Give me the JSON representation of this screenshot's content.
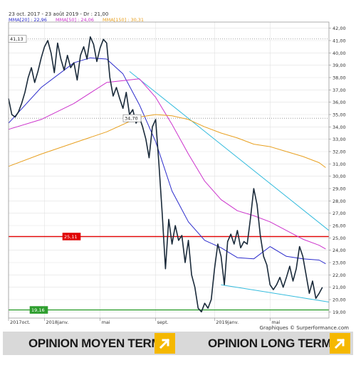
{
  "header": {
    "period": "23 oct. 2017 - 23 août 2019 - Dr : 21,00",
    "legend": [
      {
        "label": "MMA[20] : 22,96",
        "color": "#2b2bcc"
      },
      {
        "label": "MMA[50] : 24,06",
        "color": "#cc33cc"
      },
      {
        "label": "MMA[150] : 30,31",
        "color": "#e8a020"
      }
    ]
  },
  "credit": "Graphiques © Surperformance.com",
  "footer": {
    "medium_term_label": "OPINION MOYEN TERME",
    "long_term_label": "OPINION LONG TERME",
    "arrow_color": "#f5b800"
  },
  "chart_data": {
    "type": "line",
    "ylim": [
      18.5,
      42.5
    ],
    "y_ticks": [
      "19,00",
      "20,00",
      "21,00",
      "22,00",
      "23,00",
      "24,00",
      "25,00",
      "26,00",
      "27,00",
      "28,00",
      "29,00",
      "30,00",
      "31,00",
      "32,00",
      "33,00",
      "34,00",
      "35,00",
      "36,00",
      "37,00",
      "38,00",
      "39,00",
      "40,00",
      "41,00",
      "42,00"
    ],
    "x_tick_labels": [
      {
        "label": "2017oct.",
        "week": 0
      },
      {
        "label": "2018janv.",
        "week": 11
      },
      {
        "label": "mai",
        "week": 28
      },
      {
        "label": "sept.",
        "week": 45
      },
      {
        "label": "2019janv.",
        "week": 63
      },
      {
        "label": "mai",
        "week": 80
      }
    ],
    "reference_lines": [
      {
        "label": "41,13",
        "value": 41.13,
        "color": "#888888",
        "style": "dotted"
      },
      {
        "label": "34,70",
        "value": 34.7,
        "color": "#888888",
        "style": "dotted"
      },
      {
        "label": "25,11",
        "value": 25.11,
        "color": "#e00000",
        "style": "solid"
      },
      {
        "label": "19,16",
        "value": 19.16,
        "color": "#2e9e2e",
        "style": "solid"
      }
    ],
    "trendlines": [
      {
        "color": "#33bbdd",
        "points": [
          [
            37,
            38.5
          ],
          [
            98,
            25.6
          ]
        ]
      },
      {
        "color": "#33bbdd",
        "points": [
          [
            65,
            21.2
          ],
          [
            98,
            19.8
          ]
        ]
      }
    ],
    "series": [
      {
        "name": "Cours",
        "color": "#1a2a3a",
        "x": [
          0,
          1,
          2,
          3,
          4,
          5,
          6,
          7,
          8,
          9,
          10,
          11,
          12,
          13,
          14,
          15,
          16,
          17,
          18,
          19,
          20,
          21,
          22,
          23,
          24,
          25,
          26,
          27,
          28,
          29,
          30,
          31,
          32,
          33,
          34,
          35,
          36,
          37,
          38,
          39,
          40,
          41,
          42,
          43,
          44,
          45,
          46,
          47,
          48,
          49,
          50,
          51,
          52,
          53,
          54,
          55,
          56,
          57,
          58,
          59,
          60,
          61,
          62,
          63,
          64,
          65,
          66,
          67,
          68,
          69,
          70,
          71,
          72,
          73,
          74,
          75,
          76,
          77,
          78,
          79,
          80,
          81,
          82,
          83,
          84,
          85,
          86,
          87,
          88,
          89,
          90,
          91,
          92,
          93,
          94,
          95,
          96
        ],
        "values": [
          36.3,
          35.0,
          34.8,
          35.2,
          35.9,
          36.8,
          38.0,
          38.8,
          37.6,
          38.5,
          39.6,
          40.5,
          41.0,
          40.0,
          38.4,
          40.8,
          39.5,
          38.6,
          39.8,
          38.8,
          39.2,
          37.8,
          39.8,
          40.5,
          39.5,
          41.3,
          40.7,
          39.3,
          40.4,
          41.1,
          40.8,
          38.0,
          36.5,
          37.2,
          36.3,
          35.5,
          36.8,
          35.0,
          35.4,
          34.3,
          34.8,
          34.0,
          33.0,
          31.5,
          34.0,
          34.6,
          31.0,
          27.0,
          22.5,
          26.5,
          24.5,
          26.0,
          24.8,
          25.2,
          23.0,
          24.8,
          22.0,
          21.0,
          19.3,
          19.0,
          19.7,
          19.3,
          20.0,
          22.5,
          24.5,
          23.5,
          21.2,
          24.7,
          25.3,
          24.5,
          25.6,
          24.2,
          24.7,
          24.5,
          26.6,
          29.0,
          27.7,
          25.2,
          23.5,
          22.8,
          21.2,
          20.8,
          21.2,
          21.8,
          21.0,
          21.8,
          22.7,
          21.5,
          22.5,
          24.3,
          23.5,
          22.0,
          20.5,
          21.5,
          20.1,
          20.5,
          21.0
        ]
      },
      {
        "name": "MMA[20]",
        "color": "#2b2bcc",
        "x": [
          0,
          10,
          20,
          25,
          30,
          35,
          40,
          45,
          50,
          55,
          60,
          65,
          70,
          75,
          80,
          85,
          90,
          95,
          97
        ],
        "values": [
          34.3,
          37.2,
          39.2,
          39.6,
          39.5,
          38.3,
          35.8,
          32.8,
          28.8,
          26.3,
          24.8,
          24.2,
          23.4,
          23.3,
          24.3,
          23.5,
          23.3,
          23.2,
          22.9
        ]
      },
      {
        "name": "MMA[50]",
        "color": "#cc33cc",
        "x": [
          0,
          10,
          20,
          30,
          40,
          45,
          50,
          55,
          60,
          65,
          70,
          75,
          80,
          85,
          90,
          95,
          97
        ],
        "values": [
          33.8,
          34.6,
          35.9,
          37.6,
          37.9,
          36.4,
          34.2,
          31.8,
          29.6,
          28.1,
          27.2,
          26.8,
          26.3,
          25.6,
          24.9,
          24.4,
          24.1
        ]
      },
      {
        "name": "MMA[150]",
        "color": "#e8a020",
        "x": [
          0,
          10,
          20,
          30,
          40,
          45,
          50,
          55,
          60,
          65,
          70,
          75,
          80,
          85,
          90,
          95,
          97
        ],
        "values": [
          30.8,
          31.8,
          32.7,
          33.6,
          34.8,
          35.0,
          34.9,
          34.6,
          34.0,
          33.5,
          33.1,
          32.6,
          32.4,
          32.0,
          31.6,
          31.1,
          30.7
        ]
      }
    ]
  }
}
